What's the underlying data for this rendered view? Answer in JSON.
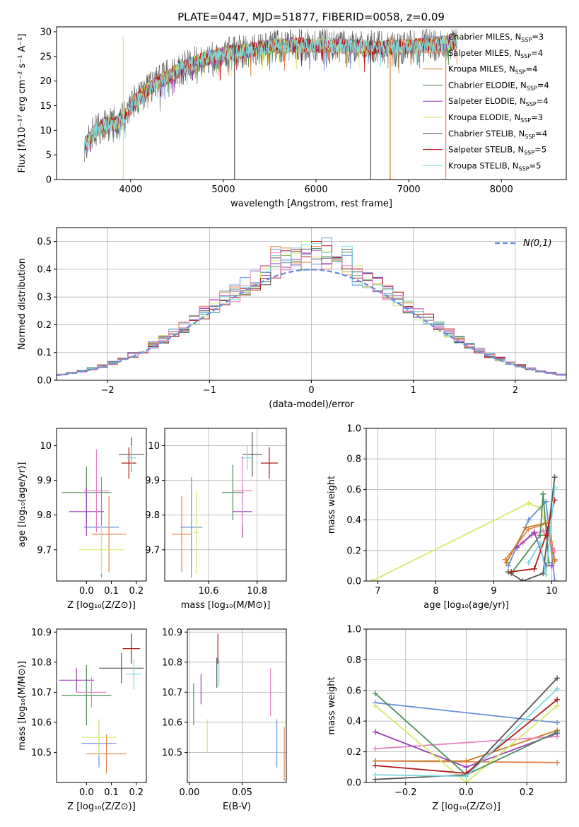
{
  "figure_title": "PLATE=0447, MJD=51877, FIBERID=0058, z=0.09",
  "colors": {
    "Chabrier MILES": "#6a8fdc",
    "Salpeter MILES": "#e8824a",
    "Kroupa MILES": "#c77d29",
    "Chabrier ELODIE": "#4f8f5a",
    "Salpeter ELODIE": "#9a3fb5",
    "Kroupa ELODIE": "#d6ea6a",
    "Chabrier STELIB": "#555555",
    "Salpeter STELIB": "#b01a1a",
    "Kroupa STELIB": "#7fd8dc",
    "Kroupa STELIB alt": "#e584c4"
  },
  "chart_data": [
    {
      "id": "spectrum",
      "type": "line",
      "xlabel": "wavelength [Angstrom, rest frame]",
      "ylabel": "Flux [f$_\\lambda$10$^{-17}$ erg cm$^{-2}$ s$^{-1}$ A$^{-1}$]",
      "xlim": [
        3200,
        8700
      ],
      "ylim": [
        0,
        31
      ],
      "xticks": [
        4000,
        5000,
        6000,
        7000,
        8000
      ],
      "yticks": [
        0,
        5,
        10,
        15,
        20,
        25,
        30
      ],
      "grid": false,
      "legend_placement": "top-right",
      "legend": [
        {
          "label": "Chabrier MILES, N",
          "sub": "SSP",
          "tail": "=3",
          "color": "#6a8fdc"
        },
        {
          "label": "Salpeter MILES, N",
          "sub": "SSP",
          "tail": "=4",
          "color": "#e8824a"
        },
        {
          "label": "Kroupa MILES, N",
          "sub": "SSP",
          "tail": "=4",
          "color": "#c77d29"
        },
        {
          "label": "Chabrier ELODIE, N",
          "sub": "SSP",
          "tail": "=4",
          "color": "#4f8f5a"
        },
        {
          "label": "Salpeter ELODIE, N",
          "sub": "SSP",
          "tail": "=4",
          "color": "#9a3fb5"
        },
        {
          "label": "Kroupa ELODIE, N",
          "sub": "SSP",
          "tail": "=3",
          "color": "#d6ea6a"
        },
        {
          "label": "Chabrier STELIB, N",
          "sub": "SSP",
          "tail": "=4",
          "color": "#555555"
        },
        {
          "label": "Salpeter STELIB, N",
          "sub": "SSP",
          "tail": "=5",
          "color": "#b01a1a"
        },
        {
          "label": "Kroupa STELIB, N",
          "sub": "SSP",
          "tail": "=5",
          "color": "#7fd8dc"
        }
      ],
      "continuum": [
        [
          3500,
          7
        ],
        [
          3600,
          9.5
        ],
        [
          3700,
          11
        ],
        [
          3850,
          11.5
        ],
        [
          3950,
          13
        ],
        [
          4050,
          16
        ],
        [
          4200,
          18.5
        ],
        [
          4400,
          21
        ],
        [
          4600,
          23
        ],
        [
          4800,
          24.5
        ],
        [
          5000,
          25.5
        ],
        [
          5200,
          26
        ],
        [
          5500,
          27
        ],
        [
          5800,
          27.3
        ],
        [
          6100,
          27.2
        ],
        [
          6400,
          27
        ],
        [
          6700,
          26.8
        ],
        [
          7000,
          27
        ],
        [
          7300,
          27.5
        ],
        [
          7500,
          28
        ]
      ],
      "vertical_lines": [
        [
          3920,
          "#d6ea6a"
        ],
        [
          6800,
          "#c77d29"
        ],
        [
          7400,
          "#e8824a"
        ],
        [
          5120,
          "#555555"
        ],
        [
          6590,
          "#555555"
        ]
      ]
    },
    {
      "id": "residuals",
      "type": "histogram",
      "xlabel": "(data-model)/error",
      "ylabel": "Normed distribution",
      "xlim": [
        -2.5,
        2.5
      ],
      "ylim": [
        0,
        0.55
      ],
      "xticks": [
        -2,
        -1,
        0,
        1,
        2
      ],
      "yticks": [
        0.0,
        0.1,
        0.2,
        0.3,
        0.4,
        0.5
      ],
      "grid": true,
      "legend_placement": "top-right",
      "legend": [
        {
          "label": "N(0,1)",
          "color": "#6a8fdc",
          "style": "dashed"
        }
      ],
      "bin_width": 0.1,
      "gaussian": {
        "mu": 0,
        "sigma": 1
      }
    },
    {
      "id": "age_vs_Z",
      "type": "errorbar",
      "xlabel": "Z [log10(Z/Z⊙)]",
      "ylabel": "age [log10(age/yr)]",
      "xlim": [
        -0.12,
        0.24
      ],
      "ylim": [
        9.61,
        10.05
      ],
      "xticks": [
        0.0,
        0.1,
        0.2
      ],
      "yticks": [
        9.7,
        9.8,
        9.9,
        10.0
      ],
      "grid": false,
      "points": [
        {
          "x": 0.06,
          "xe": 0.07,
          "y": 9.765,
          "ye": 0.145,
          "color": "#6a8fdc"
        },
        {
          "x": 0.09,
          "xe": 0.07,
          "y": 9.745,
          "ye": 0.11,
          "color": "#e8824a"
        },
        {
          "x": 0.18,
          "xe": 0.05,
          "y": 9.975,
          "ye": 0.05,
          "color": "#555555"
        },
        {
          "x": 0.0,
          "xe": 0.1,
          "y": 9.865,
          "ye": 0.075,
          "color": "#4f8f5a"
        },
        {
          "x": 0.0,
          "xe": 0.07,
          "y": 9.81,
          "ye": 0.07,
          "color": "#9a3fb5"
        },
        {
          "x": 0.06,
          "xe": 0.09,
          "y": 9.7,
          "ye": 0.07,
          "color": "#d6ea6a"
        },
        {
          "x": 0.17,
          "xe": 0.03,
          "y": 9.95,
          "ye": 0.045,
          "color": "#b01a1a"
        },
        {
          "x": 0.18,
          "xe": 0.02,
          "y": 9.965,
          "ye": 0.035,
          "color": "#7fd8dc"
        },
        {
          "x": 0.04,
          "xe": 0.05,
          "y": 9.87,
          "ye": 0.12,
          "color": "#e584c4"
        }
      ]
    },
    {
      "id": "age_vs_mass",
      "type": "errorbar",
      "xlabel": "mass [log10(M/M⊙)]",
      "ylabel": "",
      "xlim": [
        10.42,
        10.92
      ],
      "ylim": [
        9.61,
        10.05
      ],
      "xticks": [
        10.6,
        10.8
      ],
      "yticks": [
        9.7,
        9.8,
        9.9,
        10.0
      ],
      "grid": true,
      "points": [
        {
          "x": 10.53,
          "xe": 0.045,
          "y": 9.765,
          "ye": 0.145,
          "color": "#6a8fdc"
        },
        {
          "x": 10.49,
          "xe": 0.04,
          "y": 9.745,
          "ye": 0.11,
          "color": "#e8824a"
        },
        {
          "x": 10.78,
          "xe": 0.04,
          "y": 9.975,
          "ye": 0.065,
          "color": "#555555"
        },
        {
          "x": 10.7,
          "xe": 0.045,
          "y": 9.865,
          "ye": 0.08,
          "color": "#4f8f5a"
        },
        {
          "x": 10.74,
          "xe": 0.04,
          "y": 9.81,
          "ye": 0.075,
          "color": "#9a3fb5"
        },
        {
          "x": 10.55,
          "xe": 0.01,
          "y": 9.75,
          "ye": 0.12,
          "color": "#d6ea6a"
        },
        {
          "x": 10.85,
          "xe": 0.035,
          "y": 9.95,
          "ye": 0.045,
          "color": "#b01a1a"
        },
        {
          "x": 10.76,
          "xe": 0.025,
          "y": 9.965,
          "ye": 0.035,
          "color": "#7fd8dc"
        },
        {
          "x": 10.74,
          "xe": 0.04,
          "y": 9.87,
          "ye": 0.1,
          "color": "#e584c4"
        }
      ]
    },
    {
      "id": "massweight_vs_age",
      "type": "line",
      "xlabel": "age [log10(age/yr)]",
      "ylabel": "mass weight",
      "xlim": [
        6.8,
        10.25
      ],
      "ylim": [
        0,
        1
      ],
      "xticks": [
        7,
        8,
        9,
        10
      ],
      "yticks": [
        0.0,
        0.2,
        0.4,
        0.6,
        0.8,
        1.0
      ],
      "grid": true,
      "series": [
        {
          "color": "#d6ea6a",
          "x": [
            6.9,
            9.6,
            9.8,
            10.0
          ],
          "y": [
            0.0,
            0.51,
            0.48,
            0.26
          ]
        },
        {
          "color": "#6a8fdc",
          "x": [
            9.25,
            9.6,
            9.9,
            10.05
          ],
          "y": [
            0.1,
            0.4,
            0.52,
            0.0
          ]
        },
        {
          "color": "#e8824a",
          "x": [
            9.2,
            9.6,
            9.95,
            10.05
          ],
          "y": [
            0.14,
            0.34,
            0.38,
            0.14
          ]
        },
        {
          "color": "#c77d29",
          "x": [
            9.22,
            9.55,
            9.9,
            10.05
          ],
          "y": [
            0.12,
            0.35,
            0.38,
            0.13
          ]
        },
        {
          "color": "#e584c4",
          "x": [
            9.5,
            9.65,
            9.85,
            10.05
          ],
          "y": [
            0.25,
            0.3,
            0.33,
            0.2
          ]
        },
        {
          "color": "#9a3fb5",
          "x": [
            9.4,
            9.7,
            9.9,
            10.0
          ],
          "y": [
            0.22,
            0.32,
            0.1,
            0.1
          ]
        },
        {
          "color": "#555555",
          "x": [
            9.25,
            9.5,
            9.85,
            10.05
          ],
          "y": [
            0.06,
            0.0,
            0.05,
            0.68
          ]
        },
        {
          "color": "#4f8f5a",
          "x": [
            9.3,
            9.8,
            9.85,
            9.95
          ],
          "y": [
            0.05,
            0.3,
            0.57,
            0.12
          ]
        },
        {
          "color": "#b01a1a",
          "x": [
            9.3,
            9.7,
            9.9,
            10.05
          ],
          "y": [
            0.06,
            0.08,
            0.3,
            0.53
          ]
        },
        {
          "color": "#7fd8dc",
          "x": [
            9.6,
            9.8,
            9.9,
            10.05
          ],
          "y": [
            0.12,
            0.25,
            0.04,
            0.61
          ]
        }
      ]
    },
    {
      "id": "mass_vs_Z",
      "type": "errorbar",
      "xlabel": "Z [log10(Z/Z⊙)]",
      "ylabel": "mass [log10(M/M⊙)]",
      "xlim": [
        -0.12,
        0.24
      ],
      "ylim": [
        10.4,
        10.91
      ],
      "xticks": [
        0.0,
        0.1,
        0.2
      ],
      "yticks": [
        10.5,
        10.6,
        10.7,
        10.8,
        10.9
      ],
      "grid": false,
      "points": [
        {
          "x": 0.05,
          "xe": 0.07,
          "y": 10.53,
          "ye": 0.08,
          "color": "#6a8fdc"
        },
        {
          "x": 0.08,
          "xe": 0.08,
          "y": 10.495,
          "ye": 0.065,
          "color": "#e8824a"
        },
        {
          "x": 0.14,
          "xe": 0.09,
          "y": 10.78,
          "ye": 0.05,
          "color": "#555555"
        },
        {
          "x": 0.0,
          "xe": 0.1,
          "y": 10.69,
          "ye": 0.1,
          "color": "#4f8f5a"
        },
        {
          "x": -0.04,
          "xe": 0.07,
          "y": 10.74,
          "ye": 0.04,
          "color": "#9a3fb5"
        },
        {
          "x": 0.05,
          "xe": 0.07,
          "y": 10.55,
          "ye": 0.06,
          "color": "#d6ea6a"
        },
        {
          "x": 0.18,
          "xe": 0.035,
          "y": 10.845,
          "ye": 0.05,
          "color": "#b01a1a"
        },
        {
          "x": 0.19,
          "xe": 0.03,
          "y": 10.76,
          "ye": 0.05,
          "color": "#7fd8dc"
        },
        {
          "x": 0.02,
          "xe": 0.06,
          "y": 10.7,
          "ye": 0.05,
          "color": "#e584c4"
        }
      ]
    },
    {
      "id": "mass_vs_ebv",
      "type": "errorbar",
      "xlabel": "E(B-V)",
      "ylabel": "",
      "xlim": [
        -0.002,
        0.092
      ],
      "ylim": [
        10.4,
        10.91
      ],
      "xticks": [
        0.0,
        0.05
      ],
      "yticks": [
        10.5,
        10.6,
        10.7,
        10.8,
        10.9
      ],
      "grid": true,
      "points": [
        {
          "x": 0.083,
          "xe": 0,
          "y": 10.53,
          "ye": 0.08,
          "color": "#6a8fdc"
        },
        {
          "x": 0.09,
          "xe": 0,
          "y": 10.495,
          "ye": 0.09,
          "color": "#e8824a"
        },
        {
          "x": 0.026,
          "xe": 0,
          "y": 10.765,
          "ye": 0.05,
          "color": "#555555"
        },
        {
          "x": 0.004,
          "xe": 0,
          "y": 10.66,
          "ye": 0.07,
          "color": "#4f8f5a"
        },
        {
          "x": 0.011,
          "xe": 0,
          "y": 10.71,
          "ye": 0.05,
          "color": "#9a3fb5"
        },
        {
          "x": 0.017,
          "xe": 0,
          "y": 10.555,
          "ye": 0.055,
          "color": "#d6ea6a"
        },
        {
          "x": 0.027,
          "xe": 0,
          "y": 10.845,
          "ye": 0.05,
          "color": "#b01a1a"
        },
        {
          "x": 0.028,
          "xe": 0,
          "y": 10.765,
          "ye": 0.045,
          "color": "#7fd8dc"
        },
        {
          "x": 0.077,
          "xe": 0,
          "y": 10.7,
          "ye": 0.08,
          "color": "#e584c4"
        }
      ]
    },
    {
      "id": "massweight_vs_Z",
      "type": "line",
      "xlabel": "Z [log10(Z/Z⊙)]",
      "ylabel": "mass weight",
      "xlim": [
        -0.33,
        0.33
      ],
      "ylim": [
        0,
        1
      ],
      "xticks": [
        -0.2,
        0.0,
        0.2
      ],
      "yticks": [
        0.0,
        0.2,
        0.4,
        0.6,
        0.8,
        1.0
      ],
      "grid": true,
      "series": [
        {
          "color": "#6a8fdc",
          "x": [
            -0.3,
            0.3
          ],
          "y": [
            0.52,
            0.39
          ]
        },
        {
          "color": "#e8824a",
          "x": [
            -0.3,
            0.3
          ],
          "y": [
            0.14,
            0.13
          ]
        },
        {
          "color": "#c77d29",
          "x": [
            -0.3,
            0.0,
            0.3
          ],
          "y": [
            0.14,
            0.14,
            0.34
          ]
        },
        {
          "color": "#e584c4",
          "x": [
            -0.3,
            0.3
          ],
          "y": [
            0.22,
            0.3
          ]
        },
        {
          "color": "#9a3fb5",
          "x": [
            -0.3,
            0.0,
            0.3
          ],
          "y": [
            0.33,
            0.1,
            0.32
          ]
        },
        {
          "color": "#d6ea6a",
          "x": [
            -0.3,
            0.0,
            0.3
          ],
          "y": [
            0.5,
            0.0,
            0.5
          ]
        },
        {
          "color": "#555555",
          "x": [
            -0.3,
            0.0,
            0.3
          ],
          "y": [
            0.02,
            0.05,
            0.68
          ]
        },
        {
          "color": "#4f8f5a",
          "x": [
            -0.3,
            0.0,
            0.3
          ],
          "y": [
            0.58,
            0.05,
            0.33
          ]
        },
        {
          "color": "#b01a1a",
          "x": [
            -0.3,
            0.0,
            0.3
          ],
          "y": [
            0.11,
            0.06,
            0.54
          ]
        },
        {
          "color": "#7fd8dc",
          "x": [
            -0.3,
            0.0,
            0.3
          ],
          "y": [
            0.05,
            0.04,
            0.61
          ]
        }
      ]
    }
  ]
}
